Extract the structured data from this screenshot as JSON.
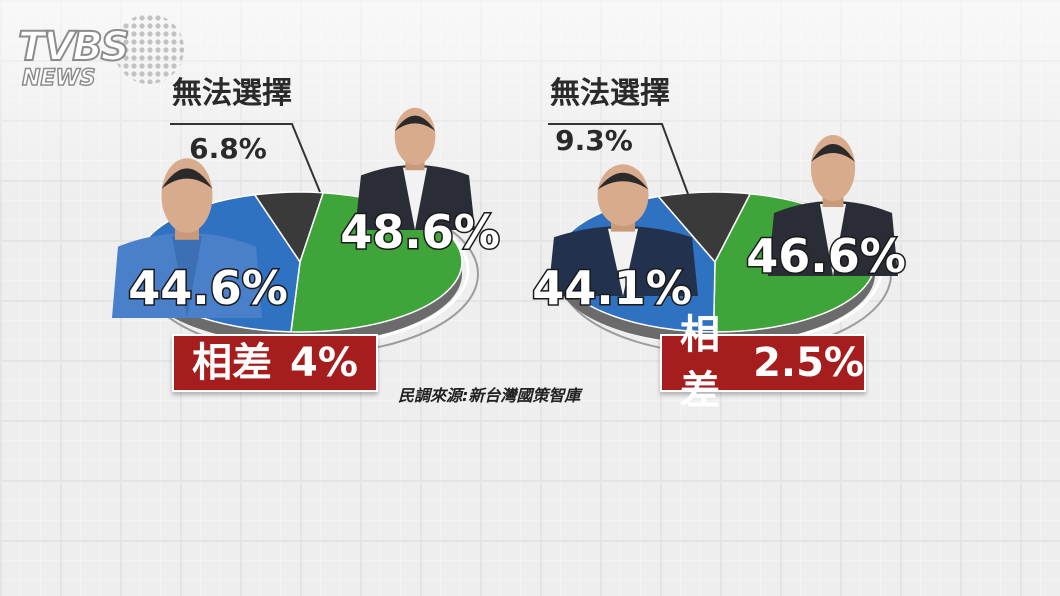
{
  "branding": {
    "logo_main": "TVBS",
    "logo_sub": "NEWS"
  },
  "source_note": "民調來源:新台灣國策智庫",
  "colors": {
    "blue": "#2f72c2",
    "green": "#3fa53a",
    "gray": "#3a3a3a",
    "banner": "#a51d1d",
    "grid_bg": "#eeeeee"
  },
  "chart_data": [
    {
      "type": "pie",
      "title": "",
      "slices": [
        {
          "label": "",
          "value": 44.6,
          "display": "44.6%",
          "color": "#2f72c2",
          "person": "blue-candidate-photo"
        },
        {
          "label": "",
          "value": 48.6,
          "display": "48.6%",
          "color": "#3fa53a",
          "person": "green-candidate-photo"
        },
        {
          "label": "無法選擇",
          "value": 6.8,
          "display": "6.8%",
          "color": "#3a3a3a"
        }
      ],
      "difference": {
        "label": "相差",
        "value_text": "4%"
      }
    },
    {
      "type": "pie",
      "title": "",
      "slices": [
        {
          "label": "",
          "value": 44.1,
          "display": "44.1%",
          "color": "#2f72c2",
          "person": "blue-candidate-photo"
        },
        {
          "label": "",
          "value": 46.6,
          "display": "46.6%",
          "color": "#3fa53a",
          "person": "green-candidate-photo"
        },
        {
          "label": "無法選擇",
          "value": 9.3,
          "display": "9.3%",
          "color": "#3a3a3a"
        }
      ],
      "difference": {
        "label": "相差",
        "value_text": "2.5%"
      }
    }
  ]
}
